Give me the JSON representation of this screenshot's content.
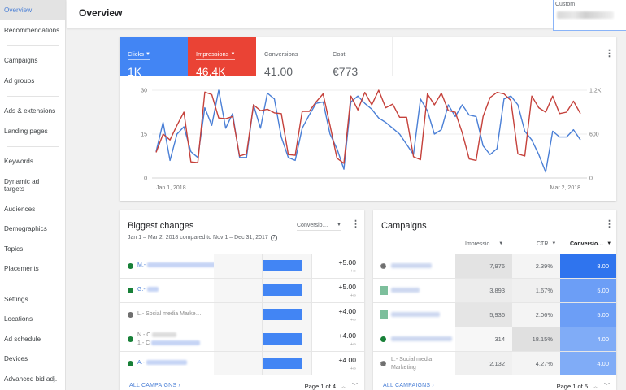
{
  "sidebar": {
    "items": [
      {
        "label": "Overview",
        "active": true
      },
      {
        "label": "Recommendations"
      },
      {
        "label": "Campaigns"
      },
      {
        "label": "Ad groups"
      },
      {
        "label": "Ads & extensions"
      },
      {
        "label": "Landing pages"
      },
      {
        "label": "Keywords"
      },
      {
        "label": "Dynamic ad targets"
      },
      {
        "label": "Audiences"
      },
      {
        "label": "Demographics"
      },
      {
        "label": "Topics"
      },
      {
        "label": "Placements"
      },
      {
        "label": "Settings"
      },
      {
        "label": "Locations"
      },
      {
        "label": "Ad schedule"
      },
      {
        "label": "Devices"
      },
      {
        "label": "Advanced bid adj."
      }
    ]
  },
  "header": {
    "title": "Overview",
    "date_range_label": "Custom"
  },
  "overview": {
    "metrics": [
      {
        "label": "Clicks",
        "value": "1K",
        "color": "#4285f4",
        "selected": true
      },
      {
        "label": "Impressions",
        "value": "46.4K",
        "color": "#ea4335",
        "selected": true
      },
      {
        "label": "Conversions",
        "value": "41.00"
      },
      {
        "label": "Cost",
        "value": "€773"
      }
    ],
    "menu_icon": "more-vert-icon"
  },
  "chart_data": {
    "type": "line",
    "title": "",
    "x_start_label": "Jan 1, 2018",
    "x_end_label": "Mar 2, 2018",
    "left_axis": {
      "ticks": [
        "0",
        "15",
        "30"
      ],
      "range": [
        0,
        30
      ],
      "series": "Clicks"
    },
    "right_axis": {
      "ticks": [
        "0",
        "600",
        "1.2K"
      ],
      "range": [
        0,
        1200
      ],
      "series": "Impressions"
    },
    "grid": true,
    "series": [
      {
        "name": "Clicks",
        "color": "#4a7fd6",
        "axis": "left",
        "values": [
          9,
          19,
          6,
          15,
          17.5,
          9,
          7,
          24,
          18,
          30,
          17,
          22,
          7,
          7,
          25,
          17,
          29,
          27,
          14,
          7,
          6,
          17,
          21.5,
          25.5,
          26,
          15,
          10,
          3,
          26,
          28,
          25.5,
          23.5,
          20.5,
          19,
          17,
          15,
          11.5,
          8,
          27,
          23,
          15,
          16.5,
          25,
          21,
          25,
          21.5,
          21,
          11,
          8,
          10,
          27,
          28,
          25,
          16,
          13,
          8,
          2,
          16,
          14,
          14,
          16.5,
          13
        ]
      },
      {
        "name": "Impressions",
        "color": "#c5413b",
        "axis": "right",
        "values": [
          350,
          600,
          520,
          720,
          900,
          220,
          210,
          1175,
          1140,
          820,
          810,
          840,
          300,
          330,
          1000,
          920,
          940,
          890,
          880,
          320,
          310,
          910,
          910,
          1040,
          1150,
          720,
          270,
          200,
          1120,
          930,
          1170,
          1000,
          1200,
          960,
          1010,
          830,
          830,
          290,
          250,
          1150,
          1000,
          1160,
          920,
          900,
          620,
          260,
          240,
          840,
          1100,
          1170,
          1150,
          1060,
          330,
          300,
          1120,
          960,
          900,
          1120,
          880,
          900,
          1050,
          880
        ]
      }
    ]
  },
  "biggest_changes": {
    "title": "Biggest changes",
    "subtitle": "Jan 1 – Mar 2, 2018 compared to Nov 1 – Dec 31, 2017",
    "metric_dropdown": "Conversio…",
    "rows": [
      {
        "name": "M.-",
        "status": "enabled",
        "value": "+5.00",
        "sub": "+∞",
        "blur_w": 90
      },
      {
        "name": "G.-",
        "status": "enabled",
        "value": "+5.00",
        "sub": "+∞",
        "blur_w": 14
      },
      {
        "name": "L.- Social media Marke…",
        "status": "removed",
        "value": "+4.00",
        "sub": "+∞",
        "blur_w": 0
      },
      {
        "name": "N.- C",
        "name_line2": "1.- C",
        "status": "enabled",
        "value": "+4.00",
        "sub": "+∞",
        "blur_w": 30
      },
      {
        "name": "A.-",
        "status": "enabled",
        "value": "+4.00",
        "sub": "+∞",
        "blur_w": 50
      }
    ],
    "footer_link": "ALL CAMPAIGNS",
    "pagination": "Page 1 of 4"
  },
  "campaigns": {
    "title": "Campaigns",
    "columns": [
      "Impressio…",
      "CTR",
      "Conversio…"
    ],
    "rows": [
      {
        "name": "",
        "icon": "removed",
        "impressions": "7,976",
        "ctr": "2.39%",
        "conversions": "8.00",
        "conv_color": "#2f74ee",
        "impr_bg": "#e3e3e3",
        "ctr_bg": "#f4f4f4"
      },
      {
        "name": "",
        "icon": "square",
        "impressions": "3,893",
        "ctr": "1.67%",
        "conversions": "5.00",
        "conv_color": "#6c9ef6",
        "impr_bg": "#ececec",
        "ctr_bg": "#f0f0f0"
      },
      {
        "name": "",
        "icon": "square",
        "impressions": "5,936",
        "ctr": "2.06%",
        "conversions": "5.00",
        "conv_color": "#6c9ef6",
        "impr_bg": "#e5e5e5",
        "ctr_bg": "#f4f4f4"
      },
      {
        "name": "",
        "icon": "enabled",
        "impressions": "314",
        "ctr": "18.15%",
        "conversions": "4.00",
        "conv_color": "#80acf7",
        "impr_bg": "#f7f7f7",
        "ctr_bg": "#e0e0e0"
      },
      {
        "name": "L.- Social media Marketing",
        "icon": "removed",
        "impressions": "2,132",
        "ctr": "4.27%",
        "conversions": "4.00",
        "conv_color": "#80acf7",
        "impr_bg": "#f0f0f0",
        "ctr_bg": "#f4f4f4"
      }
    ],
    "footer_link": "ALL CAMPAIGNS",
    "pagination": "Page 1 of 5"
  }
}
